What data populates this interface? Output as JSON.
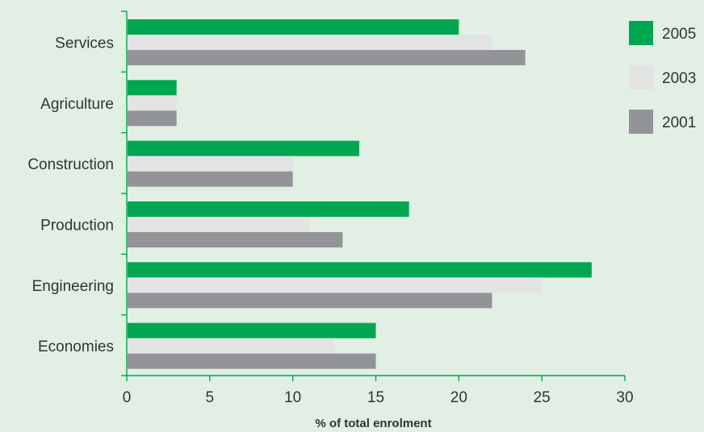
{
  "chart_data": {
    "type": "bar",
    "orientation": "horizontal",
    "categories": [
      "Services",
      "Agriculture",
      "Construction",
      "Production",
      "Engineering",
      "Economies"
    ],
    "series": [
      {
        "name": "2005",
        "color": "#00a651",
        "values": [
          20,
          3,
          14,
          17,
          28,
          15
        ]
      },
      {
        "name": "2003",
        "color": "#e3e3e3",
        "values": [
          22,
          3,
          10,
          11,
          25,
          12.5
        ]
      },
      {
        "name": "2001",
        "color": "#929497",
        "values": [
          24,
          3,
          10,
          13,
          22,
          15
        ]
      }
    ],
    "xlabel": "% of total enrolment",
    "xlim": [
      0,
      30
    ],
    "xticks": [
      "0",
      "5",
      "10",
      "15",
      "20",
      "25",
      "30"
    ],
    "legend_position": "right",
    "grid": false,
    "axis_color": "#00a651",
    "background": "#e1efe4"
  }
}
